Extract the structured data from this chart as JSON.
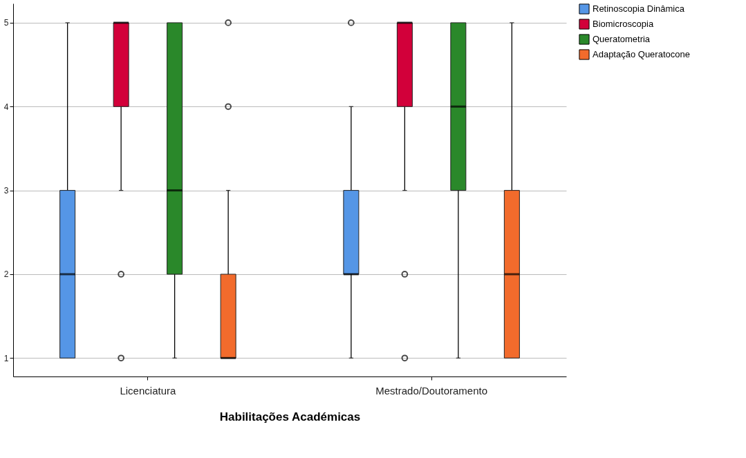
{
  "chart_data": {
    "type": "box",
    "xlabel": "Habilitações Académicas",
    "categories": [
      "Licenciatura",
      "Mestrado/Doutoramento"
    ],
    "series": [
      {
        "name": "Retinoscopia Dinâmica",
        "color": "#5596e6",
        "boxes": [
          {
            "low": 1,
            "q1": 1,
            "median": 2,
            "q3": 3,
            "high": 5
          },
          {
            "low": 1,
            "q1": 2,
            "median": 2,
            "q3": 3,
            "high": 4,
            "outliers": [
              5
            ]
          }
        ]
      },
      {
        "name": "Biomicroscopia",
        "color": "#d2003a",
        "boxes": [
          {
            "low": 3,
            "q1": 4,
            "median": 5,
            "q3": 5,
            "high": 5,
            "outliers": [
              2,
              1
            ]
          },
          {
            "low": 3,
            "q1": 4,
            "median": 5,
            "q3": 5,
            "high": 5,
            "outliers": [
              2,
              1
            ]
          }
        ]
      },
      {
        "name": "Queratometria",
        "color": "#2a882a",
        "boxes": [
          {
            "low": 1,
            "q1": 2,
            "median": 3,
            "q3": 5,
            "high": 5
          },
          {
            "low": 1,
            "q1": 3,
            "median": 4,
            "q3": 5,
            "high": 5
          }
        ]
      },
      {
        "name": "Adaptação Queratocone",
        "color": "#f26b2c",
        "boxes": [
          {
            "low": 1,
            "q1": 1,
            "median": 1,
            "q3": 2,
            "high": 3,
            "outliers": [
              4,
              5
            ]
          },
          {
            "low": 1,
            "q1": 1,
            "median": 2,
            "q3": 3,
            "high": 5
          }
        ]
      }
    ],
    "ylim": [
      0.78,
      5.23
    ],
    "yticks": [
      1,
      2,
      3,
      4,
      5
    ],
    "grid": "y",
    "legend": "top right"
  }
}
